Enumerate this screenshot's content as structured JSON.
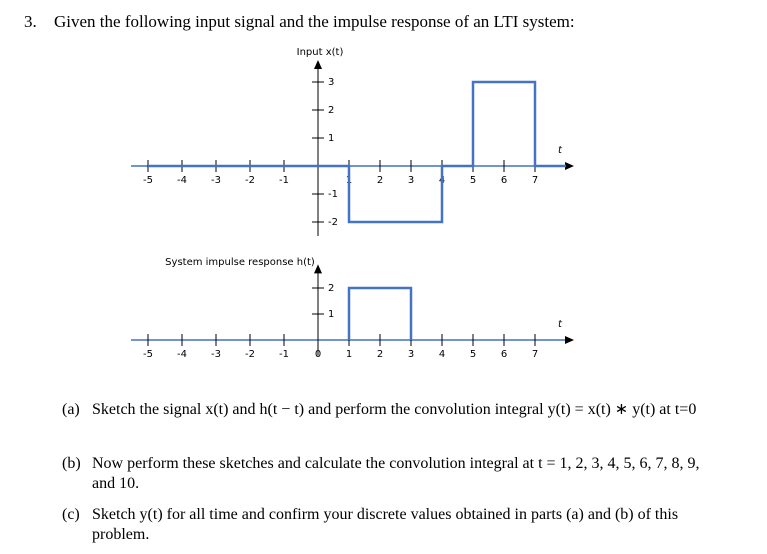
{
  "header": {
    "number": "3.",
    "text": "Given the following input signal and the impulse response of an LTI system:"
  },
  "chart_data": [
    {
      "type": "line",
      "title": "Input x(t)",
      "xlabel": "t",
      "series": [
        {
          "color": "#4472c4",
          "x": [
            -5,
            1,
            1,
            4,
            4,
            5,
            5,
            7,
            7,
            8
          ],
          "values": [
            0,
            0,
            -2,
            -2,
            0,
            0,
            3,
            3,
            0,
            0
          ]
        }
      ],
      "xlim": [
        -5.5,
        8
      ],
      "xticks": [
        -5,
        -4,
        -3,
        -2,
        -1,
        1,
        2,
        3,
        4,
        5,
        6,
        7
      ],
      "ylim": [
        -2.5,
        3.5
      ],
      "yticks": [
        3,
        2,
        1,
        -1,
        -2
      ]
    },
    {
      "type": "line",
      "title": "System impulse response h(t)",
      "xlabel": "t",
      "series": [
        {
          "color": "#4472c4",
          "x": [
            1,
            1,
            3,
            3
          ],
          "values": [
            0,
            2,
            2,
            0
          ]
        }
      ],
      "xlim": [
        -5.5,
        8
      ],
      "xticks": [
        -5,
        -4,
        -3,
        -2,
        -1,
        0,
        1,
        2,
        3,
        4,
        5,
        6,
        7
      ],
      "ylim": [
        -0.6,
        2.6
      ],
      "yticks": [
        2,
        1
      ]
    }
  ],
  "questions": [
    {
      "label": "(a)",
      "text": "Sketch the signal x(t) and h(t − t) and perform the convolution integral y(t) = x(t) ∗ y(t) at t=0"
    },
    {
      "label": "(b)",
      "text": "Now perform these sketches and calculate the convolution integral at t = 1, 2, 3, 4, 5, 6, 7, 8, 9, and 10."
    },
    {
      "label": "(c)",
      "text": "Sketch y(t) for all time and confirm your discrete values obtained in parts (a) and (b) of this problem."
    }
  ]
}
